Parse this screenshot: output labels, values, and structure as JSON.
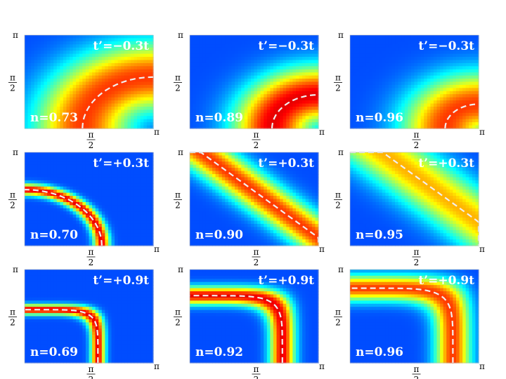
{
  "tick_labels": {
    "pi": "π",
    "half_num": "π",
    "half_den": "2"
  },
  "chart_data": [
    {
      "type": "heatmap",
      "row": 1,
      "col": 1,
      "param_label": "t’=−0.3t",
      "density_label": "n=0.73",
      "curve": "hole",
      "a": 0.55,
      "hot": "orange",
      "spread": 0.55
    },
    {
      "type": "heatmap",
      "row": 1,
      "col": 2,
      "param_label": "t’=−0.3t",
      "density_label": "n=0.89",
      "curve": "hole",
      "a": 0.36,
      "hot": "red",
      "spread": 0.45
    },
    {
      "type": "heatmap",
      "row": 1,
      "col": 3,
      "param_label": "t’=−0.3t",
      "density_label": "n=0.96",
      "curve": "hole",
      "a": 0.26,
      "hot": "orange",
      "spread": 0.5
    },
    {
      "type": "heatmap",
      "row": 2,
      "col": 1,
      "param_label": "t’=+0.3t",
      "density_label": "n=0.70",
      "curve": "electron",
      "a": 0.6,
      "hot": "red",
      "spread": 0.09
    },
    {
      "type": "heatmap",
      "row": 2,
      "col": 2,
      "param_label": "t’=+0.3t",
      "density_label": "n=0.90",
      "curve": "diagonal",
      "a": 0.78,
      "hot": "orange",
      "spread": 0.3
    },
    {
      "type": "heatmap",
      "row": 2,
      "col": 3,
      "param_label": "t’=+0.3t",
      "density_label": "n=0.95",
      "curve": "diagonal",
      "a": 0.92,
      "hot": "yellow",
      "spread": 0.45
    },
    {
      "type": "heatmap",
      "row": 3,
      "col": 1,
      "param_label": "t’=+0.9t",
      "density_label": "n=0.69",
      "curve": "square",
      "a": 0.57,
      "hot": "red",
      "spread": 0.08
    },
    {
      "type": "heatmap",
      "row": 3,
      "col": 2,
      "param_label": "t’=+0.9t",
      "density_label": "n=0.92",
      "curve": "square",
      "a": 0.72,
      "hot": "red",
      "spread": 0.14
    },
    {
      "type": "heatmap",
      "row": 3,
      "col": 3,
      "param_label": "t’=+0.9t",
      "density_label": "n=0.96",
      "curve": "square",
      "a": 0.8,
      "hot": "orange",
      "spread": 0.2
    }
  ]
}
